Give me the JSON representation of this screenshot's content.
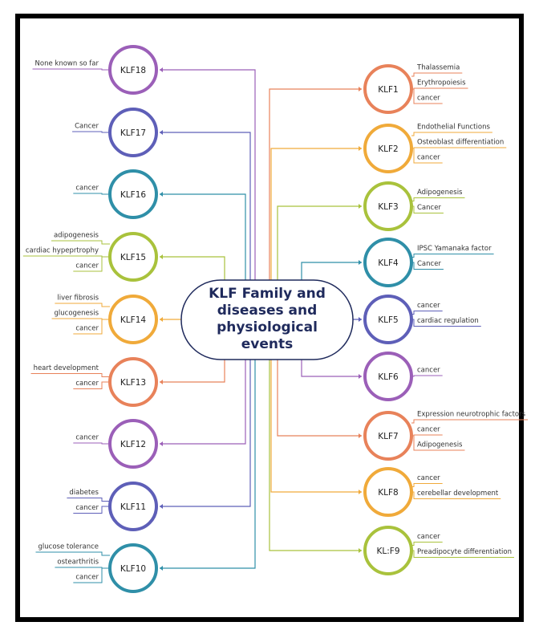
{
  "title": "KLF Family and diseases and physiological events",
  "left_nodes": [
    {
      "label": "KLF18",
      "items": [
        "None known so far"
      ]
    },
    {
      "label": "KLF17",
      "items": [
        "Cancer"
      ]
    },
    {
      "label": "KLF16",
      "items": [
        "cancer"
      ]
    },
    {
      "label": "KLF15",
      "items": [
        "adipogenesis",
        "cardiac hypeprtrophy",
        "cancer"
      ]
    },
    {
      "label": "KLF14",
      "items": [
        "liver fibrosis",
        "glucogenesis",
        "cancer"
      ]
    },
    {
      "label": "KLF13",
      "items": [
        "heart development",
        "cancer"
      ]
    },
    {
      "label": "KLF12",
      "items": [
        "cancer"
      ]
    },
    {
      "label": "KLF11",
      "items": [
        "diabetes",
        "cancer"
      ]
    },
    {
      "label": "KLF10",
      "items": [
        "glucose tolerance",
        "ostearthritis",
        "cancer"
      ]
    }
  ],
  "right_nodes": [
    {
      "label": "KLF1",
      "items": [
        "Thalassemia",
        "Erythropoiesis",
        "cancer"
      ]
    },
    {
      "label": "KLF2",
      "items": [
        "Endothelial Functions",
        "Osteoblast differentiation",
        "cancer"
      ]
    },
    {
      "label": "KLF3",
      "items": [
        "Adipogenesis",
        "Cancer"
      ]
    },
    {
      "label": "KLF4",
      "items": [
        "IPSC Yamanaka factor",
        "Cancer"
      ]
    },
    {
      "label": "KLF5",
      "items": [
        "cancer",
        "cardiac regulation"
      ]
    },
    {
      "label": "KLF6",
      "items": [
        "cancer"
      ]
    },
    {
      "label": "KLF7",
      "items": [
        "Expression neurotrophic factors",
        "cancer",
        "Adipogenesis"
      ]
    },
    {
      "label": "KLF8",
      "items": [
        "cancer",
        "cerebellar development"
      ]
    },
    {
      "label": "KL:F9",
      "items": [
        "cancer",
        "Preadipocyte differentiation"
      ]
    }
  ]
}
